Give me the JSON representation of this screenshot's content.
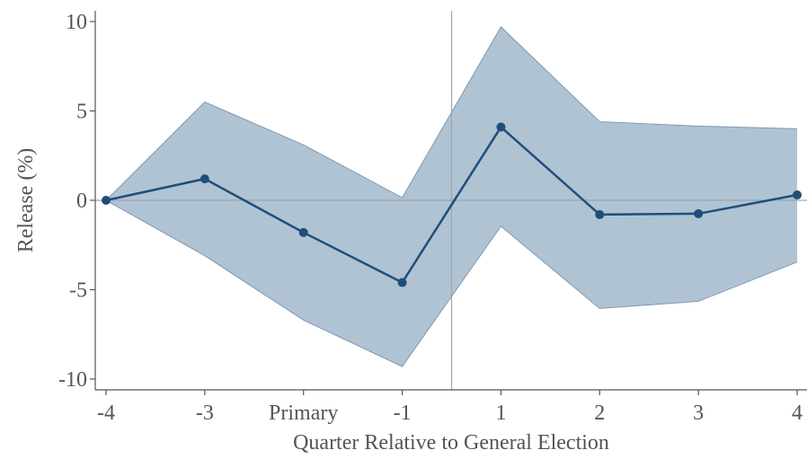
{
  "chart_data": {
    "type": "line",
    "title": "",
    "xlabel": "Quarter Relative to General Election",
    "ylabel": "Release (%)",
    "categories": [
      "-4",
      "-3",
      "Primary",
      "-1",
      "1",
      "2",
      "3",
      "4"
    ],
    "ylim": [
      -10.5,
      10.5
    ],
    "yticks": [
      "10",
      "5",
      "0",
      "-5",
      "-10"
    ],
    "ytick_values": [
      10,
      5,
      0,
      -5,
      -10
    ],
    "series": [
      {
        "values": [
          0,
          1.2,
          -1.8,
          -4.6,
          4.1,
          -0.8,
          -0.75,
          0.3
        ],
        "ci_upper": [
          0,
          5.5,
          3.1,
          0.15,
          9.7,
          4.4,
          4.15,
          4.0
        ],
        "ci_lower": [
          0,
          -3.1,
          -6.7,
          -9.3,
          -1.45,
          -6.05,
          -5.65,
          -3.45
        ]
      }
    ],
    "reference_lines": {
      "horizontal_at": 0,
      "vertical_between": [
        "-1",
        "1"
      ]
    },
    "colors": {
      "line": "#1f4e79",
      "band_fill": "#b0c3d3",
      "band_edge": "#7f98b0",
      "reference": "#9aa6b2",
      "axis": "#555555"
    },
    "grid": false,
    "legend": "none"
  }
}
